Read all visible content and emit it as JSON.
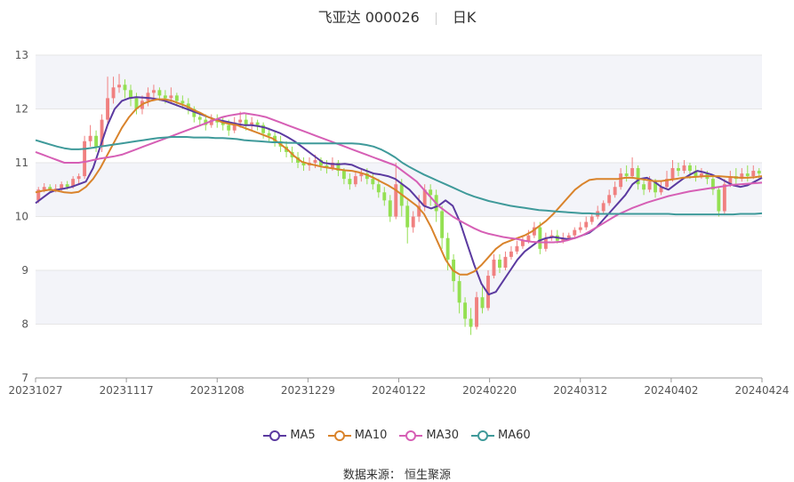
{
  "header": {
    "name_code": "飞亚达 000026",
    "period": "日K"
  },
  "source": "数据来源： 恒生聚源",
  "chart_data": {
    "type": "candlestick",
    "ylim": [
      7,
      13
    ],
    "yticks": [
      "13",
      "12",
      "11",
      "10",
      "9",
      "8",
      "7"
    ],
    "xticks": [
      "20231027",
      "20231117",
      "20231208",
      "20231229",
      "20240122",
      "20240220",
      "20240312",
      "20240402",
      "20240424"
    ],
    "candles": [
      [
        10.3,
        10.5,
        10.25,
        10.55
      ],
      [
        10.5,
        10.55,
        10.45,
        10.62
      ],
      [
        10.55,
        10.5,
        10.44,
        10.6
      ],
      [
        10.5,
        10.52,
        10.45,
        10.6
      ],
      [
        10.52,
        10.6,
        10.48,
        10.65
      ],
      [
        10.6,
        10.55,
        10.5,
        10.66
      ],
      [
        10.55,
        10.7,
        10.52,
        10.75
      ],
      [
        10.7,
        10.75,
        10.6,
        10.8
      ],
      [
        10.75,
        11.4,
        10.7,
        11.5
      ],
      [
        11.4,
        11.5,
        11.3,
        11.7
      ],
      [
        11.5,
        11.3,
        11.2,
        11.6
      ],
      [
        11.3,
        11.8,
        11.2,
        11.9
      ],
      [
        11.8,
        12.2,
        11.7,
        12.6
      ],
      [
        12.2,
        12.4,
        12.1,
        12.6
      ],
      [
        12.4,
        12.45,
        12.3,
        12.65
      ],
      [
        12.45,
        12.35,
        12.2,
        12.55
      ],
      [
        12.35,
        12.2,
        12.05,
        12.45
      ],
      [
        12.2,
        12.0,
        11.9,
        12.3
      ],
      [
        12.0,
        12.15,
        11.9,
        12.25
      ],
      [
        12.15,
        12.3,
        12.05,
        12.4
      ],
      [
        12.3,
        12.35,
        12.2,
        12.45
      ],
      [
        12.35,
        12.25,
        12.15,
        12.4
      ],
      [
        12.25,
        12.2,
        12.1,
        12.35
      ],
      [
        12.2,
        12.25,
        12.1,
        12.4
      ],
      [
        12.25,
        12.15,
        12.05,
        12.3
      ],
      [
        12.15,
        12.1,
        12.0,
        12.25
      ],
      [
        12.1,
        12.0,
        11.9,
        12.2
      ],
      [
        12.0,
        11.85,
        11.75,
        12.05
      ],
      [
        11.85,
        11.8,
        11.7,
        11.95
      ],
      [
        11.8,
        11.7,
        11.6,
        11.9
      ],
      [
        11.7,
        11.8,
        11.65,
        11.9
      ],
      [
        11.8,
        11.75,
        11.65,
        11.9
      ],
      [
        11.75,
        11.7,
        11.6,
        11.85
      ],
      [
        11.7,
        11.6,
        11.5,
        11.8
      ],
      [
        11.6,
        11.75,
        11.55,
        11.85
      ],
      [
        11.75,
        11.8,
        11.65,
        11.95
      ],
      [
        11.8,
        11.7,
        11.6,
        11.9
      ],
      [
        11.7,
        11.75,
        11.6,
        11.85
      ],
      [
        11.75,
        11.7,
        11.6,
        11.8
      ],
      [
        11.7,
        11.55,
        11.45,
        11.75
      ],
      [
        11.55,
        11.5,
        11.4,
        11.65
      ],
      [
        11.5,
        11.4,
        11.3,
        11.6
      ],
      [
        11.4,
        11.3,
        11.2,
        11.5
      ],
      [
        11.3,
        11.2,
        11.1,
        11.4
      ],
      [
        11.2,
        11.1,
        11.0,
        11.3
      ],
      [
        11.1,
        11.0,
        10.9,
        11.2
      ],
      [
        11.0,
        10.95,
        10.85,
        11.1
      ],
      [
        10.95,
        11.0,
        10.85,
        11.1
      ],
      [
        11.0,
        11.05,
        10.9,
        11.15
      ],
      [
        11.05,
        10.95,
        10.85,
        11.1
      ],
      [
        10.95,
        10.9,
        10.8,
        11.05
      ],
      [
        10.9,
        11.0,
        10.85,
        11.1
      ],
      [
        11.0,
        10.85,
        10.75,
        11.05
      ],
      [
        10.85,
        10.7,
        10.6,
        10.9
      ],
      [
        10.7,
        10.6,
        10.5,
        10.8
      ],
      [
        10.6,
        10.75,
        10.55,
        10.85
      ],
      [
        10.75,
        10.8,
        10.65,
        10.9
      ],
      [
        10.8,
        10.7,
        10.6,
        10.9
      ],
      [
        10.7,
        10.6,
        10.5,
        10.8
      ],
      [
        10.6,
        10.45,
        10.35,
        10.7
      ],
      [
        10.45,
        10.3,
        10.2,
        10.55
      ],
      [
        10.3,
        10.0,
        9.9,
        10.4
      ],
      [
        10.0,
        10.6,
        9.95,
        11.0
      ],
      [
        10.6,
        10.2,
        10.0,
        10.7
      ],
      [
        10.2,
        9.8,
        9.5,
        10.3
      ],
      [
        9.8,
        10.0,
        9.7,
        10.1
      ],
      [
        10.0,
        10.2,
        9.9,
        10.4
      ],
      [
        10.2,
        10.5,
        10.1,
        10.6
      ],
      [
        10.5,
        10.4,
        10.2,
        10.6
      ],
      [
        10.4,
        10.1,
        9.9,
        10.5
      ],
      [
        10.1,
        9.6,
        9.4,
        10.2
      ],
      [
        9.6,
        9.2,
        9.0,
        9.7
      ],
      [
        9.2,
        8.8,
        8.6,
        9.3
      ],
      [
        8.8,
        8.4,
        8.2,
        8.9
      ],
      [
        8.4,
        8.1,
        7.95,
        8.5
      ],
      [
        8.1,
        7.95,
        7.8,
        8.3
      ],
      [
        7.95,
        8.5,
        7.9,
        8.6
      ],
      [
        8.5,
        8.3,
        8.2,
        8.7
      ],
      [
        8.3,
        8.9,
        8.25,
        9.0
      ],
      [
        8.9,
        9.2,
        8.85,
        9.3
      ],
      [
        9.2,
        9.05,
        8.95,
        9.3
      ],
      [
        9.05,
        9.25,
        9.0,
        9.35
      ],
      [
        9.25,
        9.35,
        9.2,
        9.45
      ],
      [
        9.35,
        9.45,
        9.3,
        9.55
      ],
      [
        9.45,
        9.55,
        9.4,
        9.65
      ],
      [
        9.55,
        9.65,
        9.5,
        9.75
      ],
      [
        9.65,
        9.8,
        9.6,
        9.9
      ],
      [
        9.8,
        9.4,
        9.3,
        9.9
      ],
      [
        9.4,
        9.6,
        9.35,
        9.7
      ],
      [
        9.6,
        9.65,
        9.55,
        9.75
      ],
      [
        9.65,
        9.55,
        9.5,
        9.75
      ],
      [
        9.55,
        9.6,
        9.5,
        9.7
      ],
      [
        9.6,
        9.65,
        9.55,
        9.7
      ],
      [
        9.65,
        9.75,
        9.6,
        9.8
      ],
      [
        9.75,
        9.8,
        9.7,
        9.9
      ],
      [
        9.8,
        9.9,
        9.75,
        10.0
      ],
      [
        9.9,
        10.0,
        9.85,
        10.05
      ],
      [
        10.0,
        10.1,
        9.95,
        10.2
      ],
      [
        10.1,
        10.25,
        10.05,
        10.3
      ],
      [
        10.25,
        10.4,
        10.2,
        10.5
      ],
      [
        10.4,
        10.55,
        10.35,
        10.65
      ],
      [
        10.55,
        10.8,
        10.5,
        10.9
      ],
      [
        10.8,
        10.75,
        10.65,
        10.95
      ],
      [
        10.75,
        10.9,
        10.7,
        11.1
      ],
      [
        10.9,
        10.6,
        10.5,
        10.95
      ],
      [
        10.6,
        10.5,
        10.4,
        10.7
      ],
      [
        10.5,
        10.65,
        10.45,
        10.75
      ],
      [
        10.65,
        10.45,
        10.35,
        10.7
      ],
      [
        10.45,
        10.55,
        10.4,
        10.65
      ],
      [
        10.55,
        10.7,
        10.5,
        10.85
      ],
      [
        10.7,
        10.9,
        10.65,
        11.05
      ],
      [
        10.9,
        10.85,
        10.75,
        11.0
      ],
      [
        10.85,
        10.95,
        10.8,
        11.05
      ],
      [
        10.95,
        10.85,
        10.7,
        11.0
      ],
      [
        10.85,
        10.75,
        10.65,
        10.95
      ],
      [
        10.75,
        10.8,
        10.7,
        10.9
      ],
      [
        10.8,
        10.7,
        10.6,
        10.85
      ],
      [
        10.7,
        10.5,
        10.4,
        10.75
      ],
      [
        10.5,
        10.1,
        10.0,
        10.55
      ],
      [
        10.1,
        10.6,
        10.05,
        10.7
      ],
      [
        10.6,
        10.75,
        10.55,
        10.85
      ],
      [
        10.75,
        10.7,
        10.6,
        10.9
      ],
      [
        10.7,
        10.8,
        10.65,
        10.9
      ],
      [
        10.8,
        10.75,
        10.65,
        10.95
      ],
      [
        10.75,
        10.85,
        10.7,
        10.95
      ],
      [
        10.85,
        10.8,
        10.7,
        10.9
      ]
    ],
    "series": [
      {
        "name": "MA5",
        "color": "#5b3aa0",
        "values": [
          10.25,
          10.35,
          10.45,
          10.5,
          10.52,
          10.55,
          10.6,
          10.65,
          10.9,
          11.3,
          11.7,
          12.0,
          12.15,
          12.2,
          12.22,
          12.21,
          12.2,
          12.18,
          12.15,
          12.1,
          12.05,
          12.0,
          11.95,
          11.9,
          11.85,
          11.8,
          11.78,
          11.75,
          11.72,
          11.7,
          11.7,
          11.68,
          11.65,
          11.6,
          11.55,
          11.48,
          11.4,
          11.3,
          11.2,
          11.1,
          11.0,
          10.98,
          10.97,
          10.98,
          10.96,
          10.9,
          10.85,
          10.8,
          10.78,
          10.75,
          10.7,
          10.6,
          10.5,
          10.35,
          10.2,
          10.15,
          10.2,
          10.3,
          10.2,
          9.9,
          9.5,
          9.1,
          8.75,
          8.55,
          8.6,
          8.8,
          9.0,
          9.2,
          9.35,
          9.45,
          9.55,
          9.6,
          9.62,
          9.6,
          9.58,
          9.6,
          9.65,
          9.7,
          9.8,
          9.95,
          10.1,
          10.25,
          10.4,
          10.6,
          10.7,
          10.72,
          10.65,
          10.55,
          10.5,
          10.6,
          10.7,
          10.78,
          10.85,
          10.82,
          10.78,
          10.72,
          10.65,
          10.58,
          10.55,
          10.58,
          10.65,
          10.72
        ]
      },
      {
        "name": "MA10",
        "color": "#d9832b",
        "values": [
          10.45,
          10.48,
          10.5,
          10.48,
          10.45,
          10.44,
          10.46,
          10.55,
          10.7,
          10.9,
          11.15,
          11.4,
          11.65,
          11.85,
          12.0,
          12.1,
          12.15,
          12.18,
          12.18,
          12.15,
          12.1,
          12.05,
          11.98,
          11.92,
          11.85,
          11.8,
          11.75,
          11.72,
          11.7,
          11.65,
          11.6,
          11.55,
          11.5,
          11.45,
          11.35,
          11.25,
          11.12,
          11.02,
          10.98,
          10.95,
          10.92,
          10.9,
          10.88,
          10.86,
          10.85,
          10.82,
          10.78,
          10.72,
          10.65,
          10.58,
          10.5,
          10.4,
          10.3,
          10.2,
          10.05,
          9.8,
          9.5,
          9.2,
          9.0,
          8.92,
          8.92,
          8.98,
          9.1,
          9.25,
          9.4,
          9.5,
          9.55,
          9.6,
          9.65,
          9.72,
          9.82,
          9.92,
          10.05,
          10.2,
          10.35,
          10.5,
          10.6,
          10.68,
          10.7,
          10.7,
          10.7,
          10.7,
          10.72,
          10.72,
          10.7,
          10.68,
          10.66,
          10.66,
          10.68,
          10.7,
          10.72,
          10.73,
          10.74,
          10.75,
          10.75,
          10.75,
          10.74,
          10.73,
          10.72,
          10.72,
          10.73,
          10.75
        ]
      },
      {
        "name": "MA30",
        "color": "#d65fb5",
        "values": [
          11.2,
          11.15,
          11.1,
          11.05,
          11.0,
          11.0,
          11.0,
          11.02,
          11.05,
          11.08,
          11.1,
          11.12,
          11.15,
          11.2,
          11.25,
          11.3,
          11.35,
          11.4,
          11.45,
          11.5,
          11.55,
          11.6,
          11.65,
          11.7,
          11.75,
          11.8,
          11.85,
          11.88,
          11.9,
          11.92,
          11.9,
          11.88,
          11.85,
          11.8,
          11.75,
          11.7,
          11.65,
          11.6,
          11.55,
          11.5,
          11.45,
          11.4,
          11.35,
          11.3,
          11.25,
          11.2,
          11.15,
          11.1,
          11.05,
          11.0,
          10.95,
          10.85,
          10.75,
          10.65,
          10.5,
          10.35,
          10.2,
          10.1,
          10.0,
          9.92,
          9.85,
          9.78,
          9.72,
          9.68,
          9.65,
          9.62,
          9.6,
          9.58,
          9.55,
          9.53,
          9.52,
          9.52,
          9.52,
          9.53,
          9.56,
          9.6,
          9.65,
          9.72,
          9.8,
          9.88,
          9.96,
          10.04,
          10.1,
          10.16,
          10.21,
          10.26,
          10.3,
          10.34,
          10.38,
          10.41,
          10.44,
          10.47,
          10.49,
          10.51,
          10.53,
          10.55,
          10.57,
          10.59,
          10.6,
          10.61,
          10.62,
          10.63
        ]
      },
      {
        "name": "MA60",
        "color": "#3f9a9a",
        "values": [
          11.42,
          11.38,
          11.34,
          11.3,
          11.27,
          11.25,
          11.25,
          11.26,
          11.28,
          11.3,
          11.32,
          11.34,
          11.36,
          11.38,
          11.4,
          11.42,
          11.44,
          11.46,
          11.47,
          11.48,
          11.48,
          11.48,
          11.47,
          11.47,
          11.47,
          11.46,
          11.46,
          11.45,
          11.44,
          11.42,
          11.41,
          11.4,
          11.39,
          11.38,
          11.38,
          11.37,
          11.37,
          11.36,
          11.36,
          11.36,
          11.36,
          11.36,
          11.36,
          11.36,
          11.36,
          11.35,
          11.33,
          11.3,
          11.25,
          11.18,
          11.1,
          11.0,
          10.92,
          10.85,
          10.78,
          10.72,
          10.66,
          10.6,
          10.54,
          10.48,
          10.42,
          10.37,
          10.33,
          10.29,
          10.26,
          10.23,
          10.2,
          10.18,
          10.16,
          10.14,
          10.12,
          10.11,
          10.1,
          10.09,
          10.08,
          10.07,
          10.06,
          10.06,
          10.05,
          10.05,
          10.05,
          10.05,
          10.05,
          10.05,
          10.05,
          10.05,
          10.05,
          10.05,
          10.05,
          10.04,
          10.04,
          10.04,
          10.04,
          10.04,
          10.04,
          10.04,
          10.04,
          10.04,
          10.05,
          10.05,
          10.05,
          10.06
        ]
      }
    ],
    "up_color": "#f08080",
    "down_color": "#94e052",
    "grid": true,
    "legend": "bottom-center"
  }
}
